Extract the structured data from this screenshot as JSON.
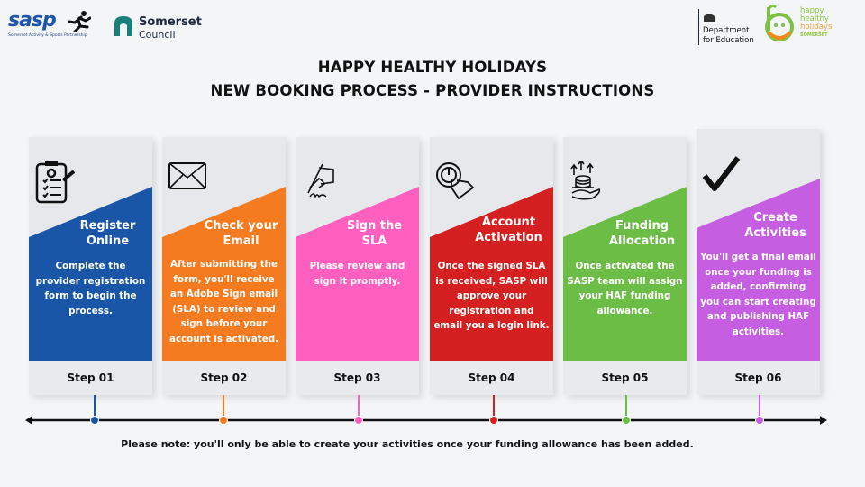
{
  "logos": {
    "sasp": {
      "text": "sasp",
      "subtitle": "Somerset Activity & Sports Partnership"
    },
    "somerset": {
      "line1": "Somerset",
      "line2": "Council"
    },
    "dfe": {
      "line1": "Department",
      "line2": "for Education"
    },
    "hhh": {
      "line1": "happy",
      "line2": "healthy",
      "line3": "holidays",
      "line4": "SOMERSET"
    }
  },
  "header": {
    "title_line1": "HAPPY HEALTHY HOLIDAYS",
    "title_line2": "NEW BOOKING PROCESS - PROVIDER INSTRUCTIONS"
  },
  "steps": [
    {
      "title": "Register Online",
      "body": "Complete the provider registration form to begin the process.",
      "step": "Step 01",
      "color": "#1a56a8",
      "icon": "clipboard-checklist-icon"
    },
    {
      "title": "Check your Email",
      "body": "After submitting the form, you'll receive an Adobe Sign email (SLA) to review and sign before your account is activated.",
      "step": "Step 02",
      "color": "#f47b20",
      "icon": "envelope-icon"
    },
    {
      "title": "Sign the SLA",
      "body": "Please review and sign it promptly.",
      "step": "Step 03",
      "color": "#ff5fbf",
      "icon": "signing-hand-icon"
    },
    {
      "title": "Account Activation",
      "body": "Once the signed SLA is received, SASP will approve your registration and email you a login link.",
      "step": "Step 04",
      "color": "#d42020",
      "icon": "power-button-hand-icon"
    },
    {
      "title": "Funding Allocation",
      "body": "Once activated the SASP team will assign your HAF funding allowance.",
      "step": "Step 05",
      "color": "#6cbd45",
      "icon": "coins-hand-icon"
    },
    {
      "title": "Create Activities",
      "body": "You'll get a final email once your funding is added, confirming you can start creating and publishing HAF activities.",
      "step": "Step 06",
      "color": "#c55ee0",
      "icon": "checkmark-icon"
    }
  ],
  "note": "Please note: you'll only be able to create your activities once your funding allowance has been added."
}
